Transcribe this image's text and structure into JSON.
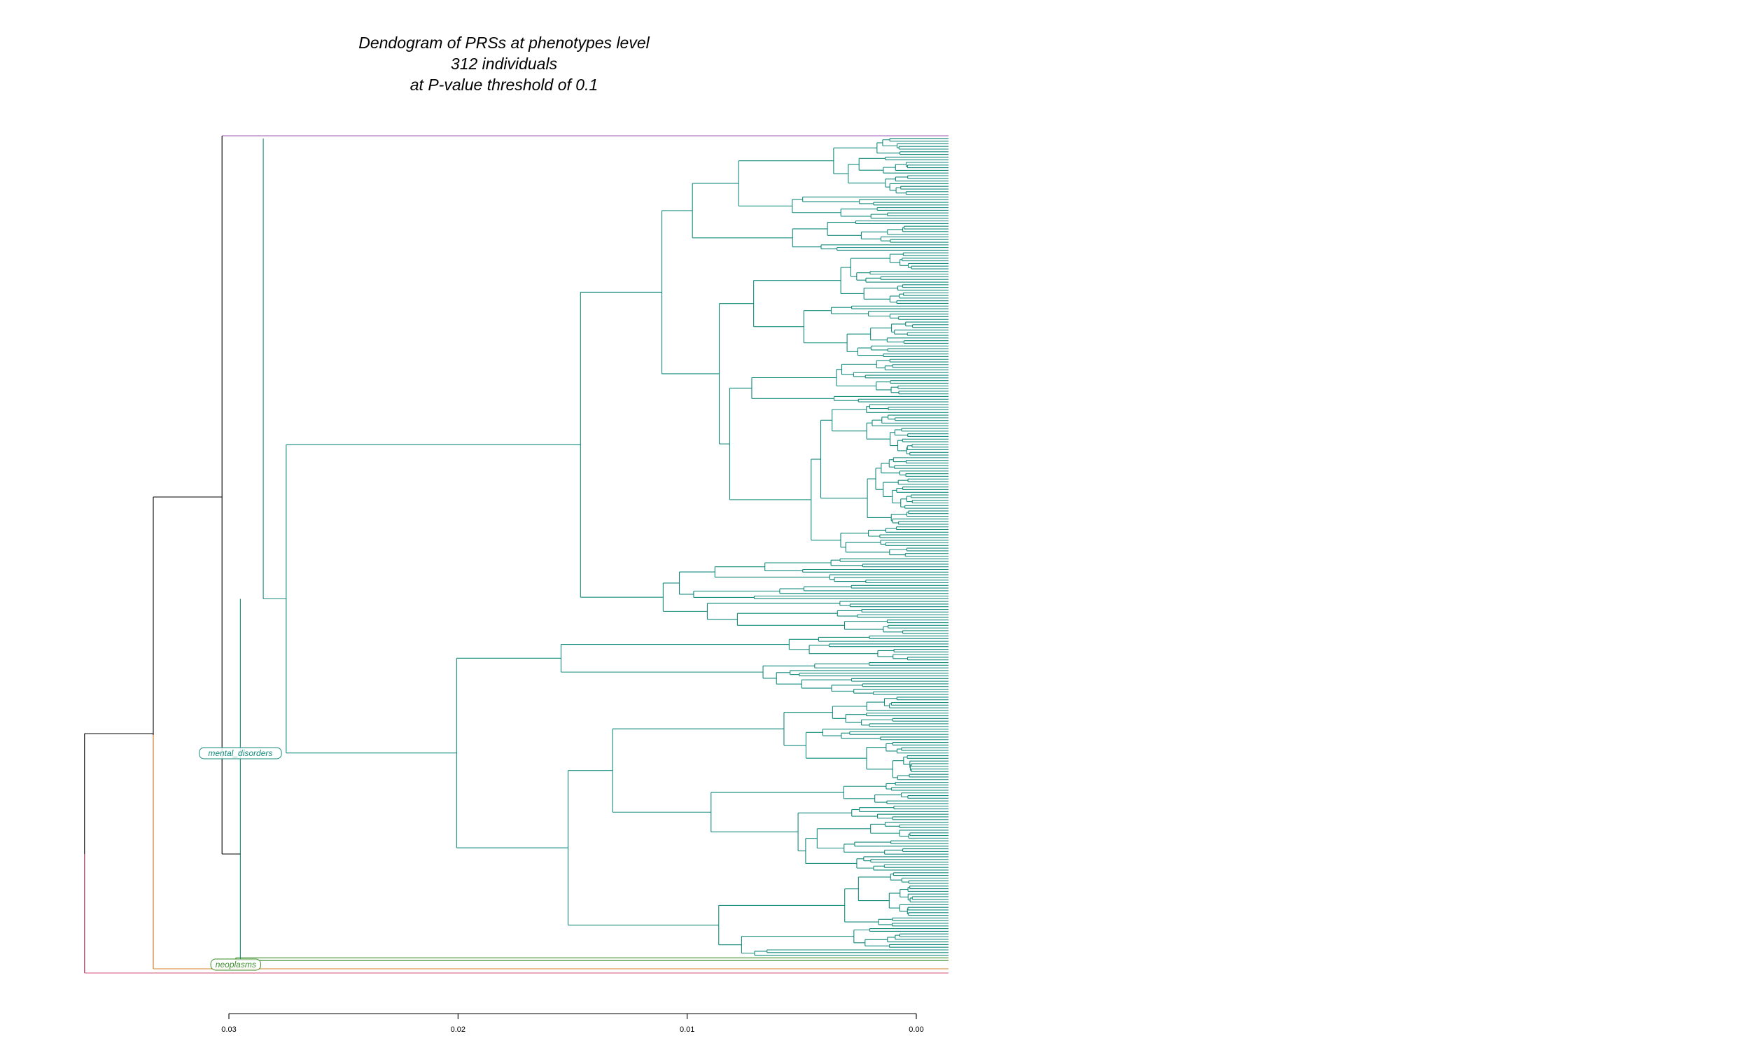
{
  "chart_data": {
    "type": "dendrogram",
    "title": [
      "Dendogram of PRSs at phenotypes level",
      "312 individuals",
      "at P-value threshold of 0.1"
    ],
    "orientation": "horizontal",
    "leaf_count": 312,
    "xlim": [
      0.03,
      0.0
    ],
    "xticks": [
      {
        "value": 0.03,
        "label": "0.03"
      },
      {
        "value": 0.02,
        "label": "0.02"
      },
      {
        "value": 0.01,
        "label": "0.01"
      },
      {
        "value": 0.0,
        "label": "0.00"
      }
    ],
    "root_height": 0.0363,
    "clusters": [
      {
        "label": "mental_disorders",
        "color": "#138a7c",
        "height_label": 0.0295
      },
      {
        "label": "neoplasms",
        "color": "#3c8c2a",
        "height_label": 0.0297
      }
    ],
    "colors": {
      "mental_disorders": "#138a7c",
      "neoplasms": "#3c8c2a",
      "root": "#000000",
      "orange_branch": "#d9822b",
      "red_branch": "#d4507a",
      "purple_leaf": "#9b59b6"
    }
  }
}
